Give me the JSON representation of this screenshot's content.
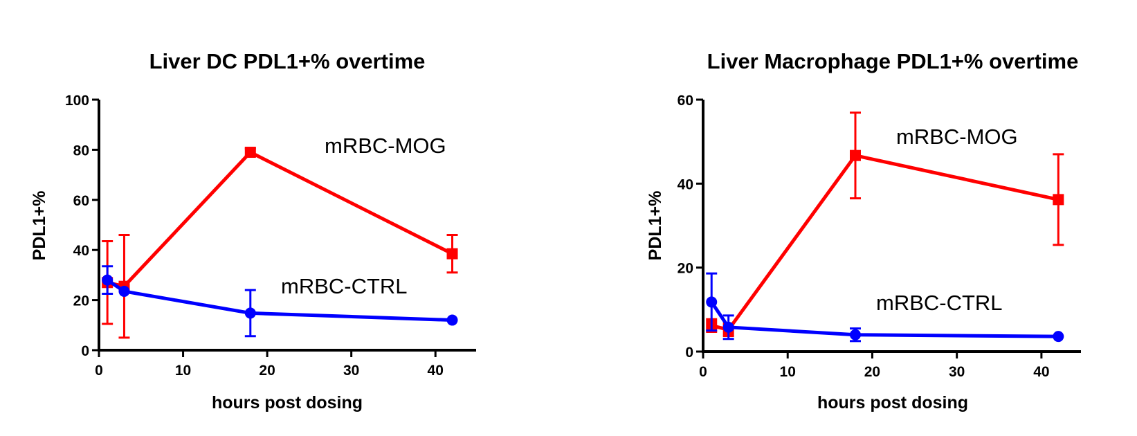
{
  "chart_data": [
    {
      "type": "line",
      "title": "Liver DC PDL1+% overtime",
      "xlabel": "hours post dosing",
      "ylabel": "PDL1+%",
      "xlim": [
        0,
        45
      ],
      "ylim": [
        0,
        100
      ],
      "xticks": [
        0,
        10,
        20,
        30,
        40
      ],
      "yticks": [
        0,
        20,
        40,
        60,
        80,
        100
      ],
      "series": [
        {
          "name": "mRBC-MOG",
          "color": "#ff0000",
          "marker": "square",
          "x": [
            1,
            3,
            18,
            42
          ],
          "y": [
            27,
            25.5,
            79,
            38.5
          ],
          "err": [
            16.5,
            20.5,
            1.5,
            7.5
          ]
        },
        {
          "name": "mRBC-CTRL",
          "color": "#0000ff",
          "marker": "circle",
          "x": [
            1,
            3,
            18,
            42
          ],
          "y": [
            28,
            23.5,
            14.8,
            12
          ],
          "err": [
            5.5,
            0,
            9.2,
            0
          ]
        }
      ]
    },
    {
      "type": "line",
      "title": "Liver Macrophage PDL1+% overtime",
      "xlabel": "hours post dosing",
      "ylabel": "PDL1+%",
      "xlim": [
        0,
        45
      ],
      "ylim": [
        0,
        60
      ],
      "xticks": [
        0,
        10,
        20,
        30,
        40
      ],
      "yticks": [
        0,
        20,
        40,
        60
      ],
      "series": [
        {
          "name": "mRBC-MOG",
          "color": "#ff0000",
          "marker": "square",
          "x": [
            1,
            3,
            18,
            42
          ],
          "y": [
            6.2,
            5.2,
            46.7,
            36.2
          ],
          "err": [
            1.5,
            1.5,
            10.2,
            10.8
          ]
        },
        {
          "name": "mRBC-CTRL",
          "color": "#0000ff",
          "marker": "circle",
          "x": [
            1,
            3,
            18,
            42
          ],
          "y": [
            11.8,
            5.8,
            4,
            3.6
          ],
          "err": [
            6.8,
            2.8,
            1.5,
            0
          ]
        }
      ]
    }
  ]
}
